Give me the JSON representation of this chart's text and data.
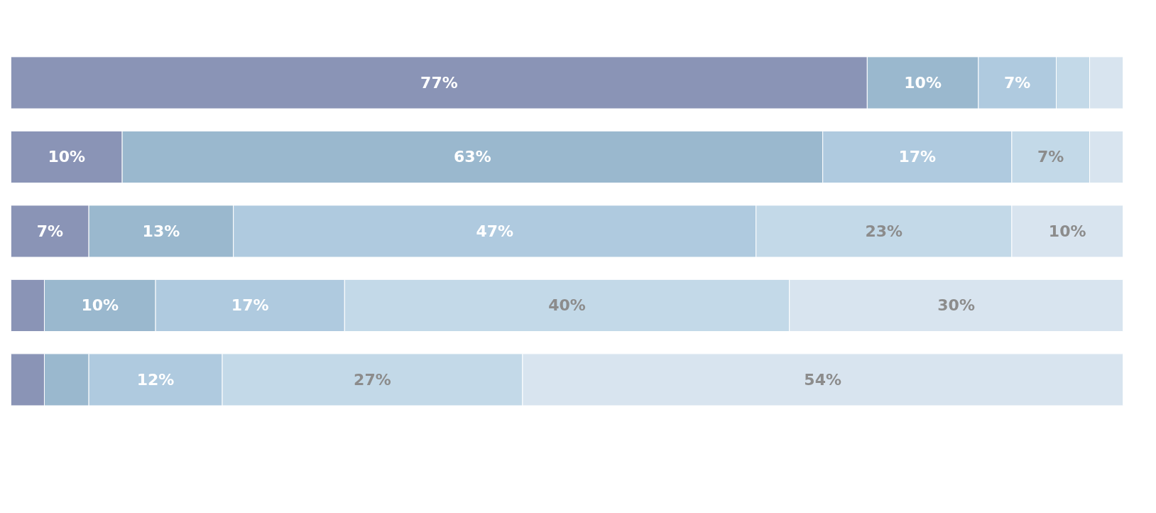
{
  "chart_data": {
    "type": "bar",
    "orientation": "horizontal",
    "stacked": true,
    "categories": [
      null,
      null,
      null,
      null,
      null
    ],
    "xlim": [
      0,
      100
    ],
    "tick_labels": false,
    "grid": false,
    "series": [
      {
        "color": "#8a94b6",
        "values": [
          77,
          10,
          7,
          3,
          3
        ],
        "value_labels": [
          "77%",
          "10%",
          "7%",
          null,
          null
        ]
      },
      {
        "color": "#9ab8ce",
        "values": [
          10,
          63,
          13,
          10,
          4
        ],
        "value_labels": [
          "10%",
          "63%",
          "13%",
          "10%",
          null
        ]
      },
      {
        "color": "#afcadf",
        "values": [
          7,
          17,
          47,
          17,
          12
        ],
        "value_labels": [
          "7%",
          "17%",
          "47%",
          "17%",
          "12%"
        ]
      },
      {
        "color": "#c3d9e8",
        "values": [
          3,
          7,
          23,
          40,
          27
        ],
        "value_labels": [
          null,
          "7%",
          "23%",
          "40%",
          "27%"
        ]
      },
      {
        "color": "#d8e4ef",
        "values": [
          3,
          3,
          10,
          30,
          54
        ],
        "value_labels": [
          null,
          null,
          "10%",
          "30%",
          "54%"
        ]
      }
    ]
  }
}
